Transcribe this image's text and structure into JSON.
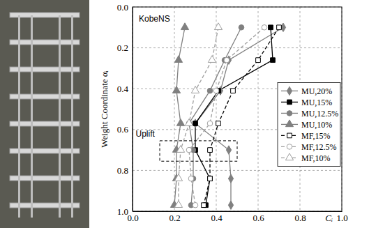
{
  "chart_data": {
    "type": "line",
    "x_label": "Cᵢ",
    "y_label": "Weight Coordinate αᵢ",
    "annotations": [
      "KobeNS",
      "Uplift"
    ],
    "xlim": [
      0,
      1
    ],
    "ylim": [
      0,
      1
    ],
    "xticks": [
      {
        "value": 0,
        "label": "0.0"
      },
      {
        "value": 0.2,
        "label": "0.2"
      },
      {
        "value": 0.4,
        "label": "0.4"
      },
      {
        "value": 0.6,
        "label": "0.6"
      },
      {
        "value": 0.8,
        "label": "0.8"
      },
      {
        "value": 1,
        "label": "1.0"
      }
    ],
    "yticks": [
      {
        "value": 0,
        "label": "0.0"
      },
      {
        "value": 0.2,
        "label": "0.2"
      },
      {
        "value": 0.4,
        "label": "0.4"
      },
      {
        "value": 0.6,
        "label": "0.6"
      },
      {
        "value": 0.8,
        "label": "0.8"
      },
      {
        "value": 1,
        "label": "1.0"
      }
    ],
    "grid": true,
    "legend": "right",
    "series": [
      {
        "name": "MU,20%",
        "color": "#808080",
        "marker": "diamond",
        "line_style": "solid",
        "x": [
          0.72,
          0.46,
          0.42,
          0.3,
          0.46,
          0.47,
          0.47
        ],
        "values": [
          0.1,
          0.26,
          0.41,
          0.57,
          0.7,
          0.84,
          0.97
        ]
      },
      {
        "name": "MU,15%",
        "color": "#000000",
        "marker": "square",
        "line_style": "solid",
        "x": [
          0.66,
          0.67,
          0.41,
          0.3,
          0.3,
          0.37,
          0.35
        ],
        "values": [
          0.1,
          0.26,
          0.41,
          0.57,
          0.7,
          0.84,
          0.97
        ]
      },
      {
        "name": "MU,12.5%",
        "color": "#808080",
        "marker": "circle",
        "line_style": "solid",
        "x": [
          0.52,
          0.44,
          0.37,
          0.27,
          0.29,
          0.29,
          0.28
        ],
        "values": [
          0.1,
          0.26,
          0.41,
          0.57,
          0.7,
          0.84,
          0.97
        ]
      },
      {
        "name": "MU,10%",
        "color": "#808080",
        "marker": "triangle",
        "line_style": "solid",
        "x": [
          0.25,
          0.22,
          0.21,
          0.23,
          0.21,
          0.21,
          0.2
        ],
        "values": [
          0.1,
          0.26,
          0.41,
          0.57,
          0.7,
          0.84,
          0.97
        ]
      },
      {
        "name": "MF,15%",
        "color": "#000000",
        "marker": "open-square",
        "line_style": "dashed",
        "x": [
          0.7,
          0.6,
          0.48,
          0.41,
          0.37,
          0.37,
          0.34
        ],
        "values": [
          0.1,
          0.26,
          0.41,
          0.57,
          0.7,
          0.84,
          0.97
        ]
      },
      {
        "name": "MF,12.5%",
        "color": "#a0a0a0",
        "marker": "open-circle",
        "line_style": "dashed",
        "x": [
          0.63,
          0.45,
          0.4,
          0.37,
          0.27,
          0.28,
          0.3
        ],
        "values": [
          0.1,
          0.26,
          0.41,
          0.57,
          0.7,
          0.84,
          0.97
        ]
      },
      {
        "name": "MF,10%",
        "color": "#a0a0a0",
        "marker": "open-triangle",
        "line_style": "dashed",
        "x": [
          0.41,
          0.38,
          0.3,
          0.27,
          0.23,
          0.22,
          0.22
        ],
        "values": [
          0.1,
          0.26,
          0.41,
          0.57,
          0.7,
          0.84,
          0.97
        ]
      }
    ]
  }
}
